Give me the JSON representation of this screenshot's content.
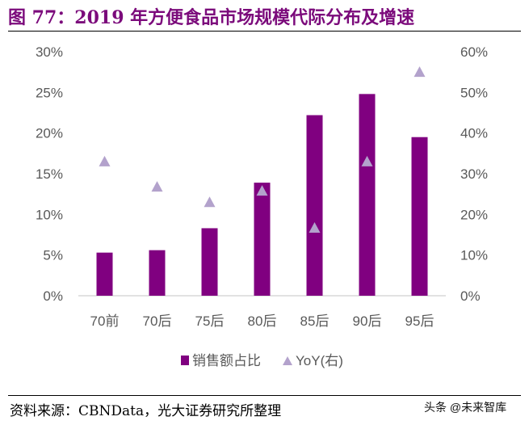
{
  "title": "图 77：2019 年方便食品市场规模代际分布及增速",
  "source": "资料来源：CBNData，光大证券研究所整理",
  "watermark": "头条 @未来智库",
  "chart_data": {
    "type": "bar",
    "title": "",
    "categories": [
      "70前",
      "70后",
      "75后",
      "80后",
      "85后",
      "90后",
      "95后"
    ],
    "series": [
      {
        "name": "销售额占比",
        "type": "bar",
        "axis": "left",
        "color": "#800080",
        "values": [
          5.3,
          5.6,
          8.3,
          13.9,
          22.2,
          24.8,
          19.5
        ]
      },
      {
        "name": "YoY(右)",
        "type": "scatter",
        "marker": "triangle",
        "axis": "right",
        "color": "#b3a2cc",
        "values": [
          33,
          26.8,
          23,
          25.8,
          16.7,
          33,
          55
        ]
      }
    ],
    "y_left": {
      "range": [
        0,
        30
      ],
      "ticks": [
        "0%",
        "5%",
        "10%",
        "15%",
        "20%",
        "25%",
        "30%"
      ]
    },
    "y_right": {
      "range": [
        0,
        60
      ],
      "ticks": [
        "0%",
        "10%",
        "20%",
        "30%",
        "40%",
        "50%",
        "60%"
      ]
    },
    "grid": false,
    "legend": "bottom"
  }
}
